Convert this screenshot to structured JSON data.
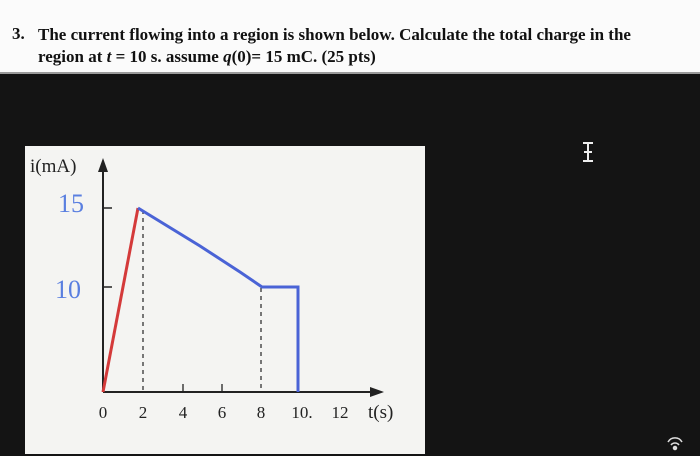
{
  "question": {
    "number": "3.",
    "text_parts": [
      "The current flowing into a region is shown below. Calculate the total charge in the region at ",
      "t",
      " = 10 s. assume ",
      "q",
      "(0)= 15 mC. (25 pts)"
    ]
  },
  "figure": {
    "y_label": "i(mA)",
    "x_label": "t(s)",
    "x_tick_labels": [
      "0",
      "2",
      "4",
      "6",
      "8",
      "10.",
      "12"
    ],
    "handwritten_labels": [
      "15",
      "10"
    ]
  }
}
